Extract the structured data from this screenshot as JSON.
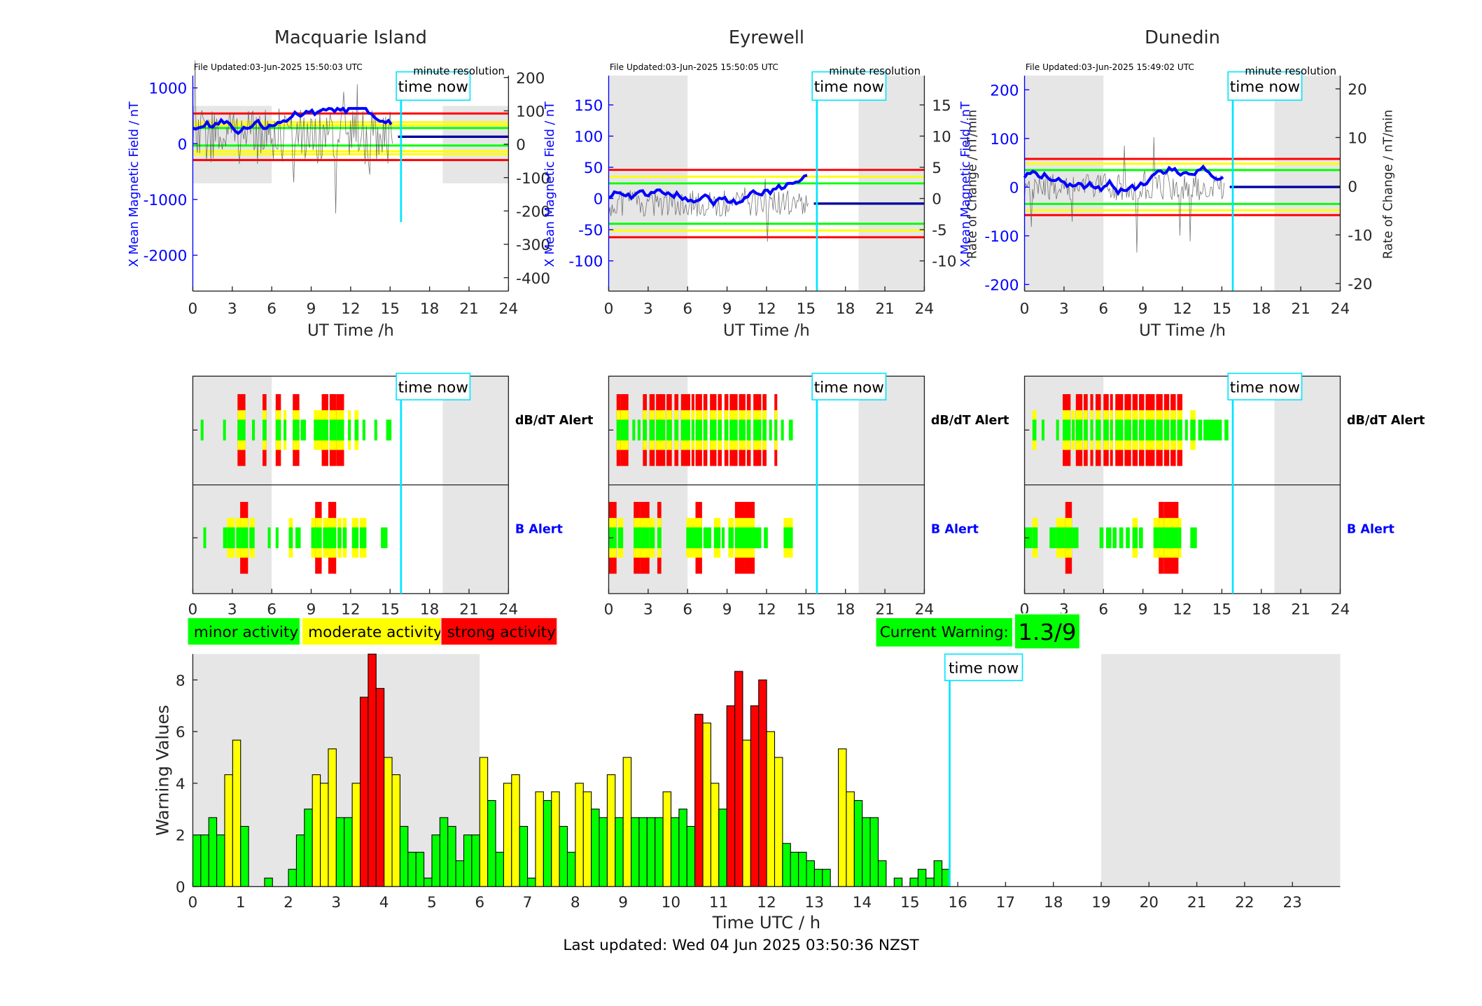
{
  "footer": "Last updated: Wed 04 Jun 2025 03:50:36 NZST",
  "colors": {
    "minor": "#00ff00",
    "moderate": "#ffff00",
    "strong": "#ff0000",
    "now": "#00e5ff",
    "field": "#0000ff",
    "shade": "#e6e6e6"
  },
  "legend": {
    "minor": "minor activity",
    "moderate": "moderate activity",
    "strong": "strong activity"
  },
  "current_warning": {
    "label": "Current Warning:",
    "value": "1.3/9"
  },
  "stations": [
    {
      "name": "Macquarie Island",
      "file_updated": "File Updated:03-Jun-2025 15:50:03 UTC",
      "resolution": "minute resolution",
      "now_label": "time now",
      "alert_db": "dB/dT Alert",
      "alert_b": "B Alert",
      "left_label": "X Mean Magnetic Field / nT",
      "right_label": "",
      "xlabel": "UT Time /h",
      "left_ticks": [
        "1000",
        "0",
        "-1000",
        "-2000"
      ],
      "right_ticks": [
        "200",
        "100",
        "0",
        "-100",
        "-200",
        "-300",
        "-400"
      ],
      "x_ticks": [
        "0",
        "3",
        "6",
        "9",
        "12",
        "15",
        "18",
        "21",
        "24"
      ],
      "alert_x_ticks": [
        "0",
        "3",
        "6",
        "9",
        "12",
        "15",
        "18",
        "21",
        "24"
      ]
    },
    {
      "name": "Eyrewell",
      "file_updated": "File Updated:03-Jun-2025 15:50:05 UTC",
      "resolution": "minute resolution",
      "now_label": "time now",
      "alert_db": "dB/dT Alert",
      "alert_b": "B Alert",
      "left_label": "X Mean Magnetic Field / nT",
      "right_label": "Rate of Change / nT/min",
      "xlabel": "UT Time /h",
      "left_ticks": [
        "150",
        "100",
        "50",
        "0",
        "-50",
        "-100"
      ],
      "right_ticks": [
        "15",
        "10",
        "5",
        "0",
        "-5",
        "-10"
      ],
      "x_ticks": [
        "0",
        "3",
        "6",
        "9",
        "12",
        "15",
        "18",
        "21",
        "24"
      ],
      "alert_x_ticks": [
        "0",
        "3",
        "6",
        "9",
        "12",
        "15",
        "18",
        "21",
        "24"
      ]
    },
    {
      "name": "Dunedin",
      "file_updated": "File Updated:03-Jun-2025 15:49:02 UTC",
      "resolution": "minute resolution",
      "now_label": "time now",
      "alert_db": "dB/dT Alert",
      "alert_b": "B Alert",
      "left_label": "X Mean Magnetic Field / nT",
      "right_label": "Rate of Change / nT/min",
      "xlabel": "UT Time /h",
      "left_ticks": [
        "200",
        "100",
        "0",
        "-100",
        "-200"
      ],
      "right_ticks": [
        "20",
        "10",
        "0",
        "-10",
        "-20"
      ],
      "x_ticks": [
        "0",
        "3",
        "6",
        "9",
        "12",
        "15",
        "18",
        "21",
        "24"
      ],
      "alert_x_ticks": [
        "0",
        "3",
        "6",
        "9",
        "12",
        "15",
        "18",
        "21",
        "24"
      ]
    }
  ],
  "chart_data": {
    "type": "bar",
    "ylabel": "Warning Values",
    "xlabel": "Time UTC / h",
    "xlim": [
      0,
      24
    ],
    "ylim": [
      0,
      9
    ],
    "y_ticks": [
      "0",
      "2",
      "4",
      "6",
      "8"
    ],
    "x_ticks": [
      "0",
      "1",
      "2",
      "3",
      "4",
      "5",
      "6",
      "7",
      "8",
      "9",
      "10",
      "11",
      "12",
      "13",
      "14",
      "15",
      "16",
      "17",
      "18",
      "19",
      "20",
      "21",
      "22",
      "23"
    ],
    "time_now_h": 15.83,
    "time_now_label": "time now",
    "bin_width_h": 0.1667,
    "values": [
      2.0,
      2.0,
      2.67,
      2.0,
      4.33,
      5.67,
      2.33,
      0,
      0,
      0.33,
      0,
      0,
      0.67,
      2.0,
      3.0,
      4.33,
      4.0,
      5.33,
      2.67,
      2.67,
      4.0,
      7.33,
      9.0,
      7.67,
      5.0,
      4.33,
      2.33,
      1.33,
      1.33,
      0.33,
      2.0,
      2.67,
      2.33,
      1.0,
      2.0,
      2.0,
      5.0,
      3.33,
      1.33,
      4.0,
      4.33,
      2.33,
      0.33,
      3.67,
      3.33,
      3.67,
      2.33,
      1.33,
      4.0,
      3.67,
      3.0,
      2.67,
      4.33,
      2.67,
      5.0,
      2.67,
      2.67,
      2.67,
      2.67,
      3.67,
      2.67,
      3.0,
      2.33,
      6.67,
      6.33,
      4.0,
      3.0,
      7.0,
      8.33,
      5.67,
      7.0,
      8.0,
      6.0,
      5.0,
      1.67,
      1.33,
      1.33,
      1.0,
      0.67,
      0.67,
      0,
      5.33,
      3.67,
      3.33,
      2.67,
      2.67,
      1.0,
      0,
      0.33,
      0,
      0.33,
      0.67,
      0.33,
      1.0,
      0.67
    ],
    "levels_note_thresholds": [
      3.5,
      6.5
    ]
  },
  "field_panels": {
    "ylim": [
      [
        -2650,
        1050
      ],
      [
        -130,
        190
      ],
      [
        -215,
        230
      ]
    ]
  }
}
